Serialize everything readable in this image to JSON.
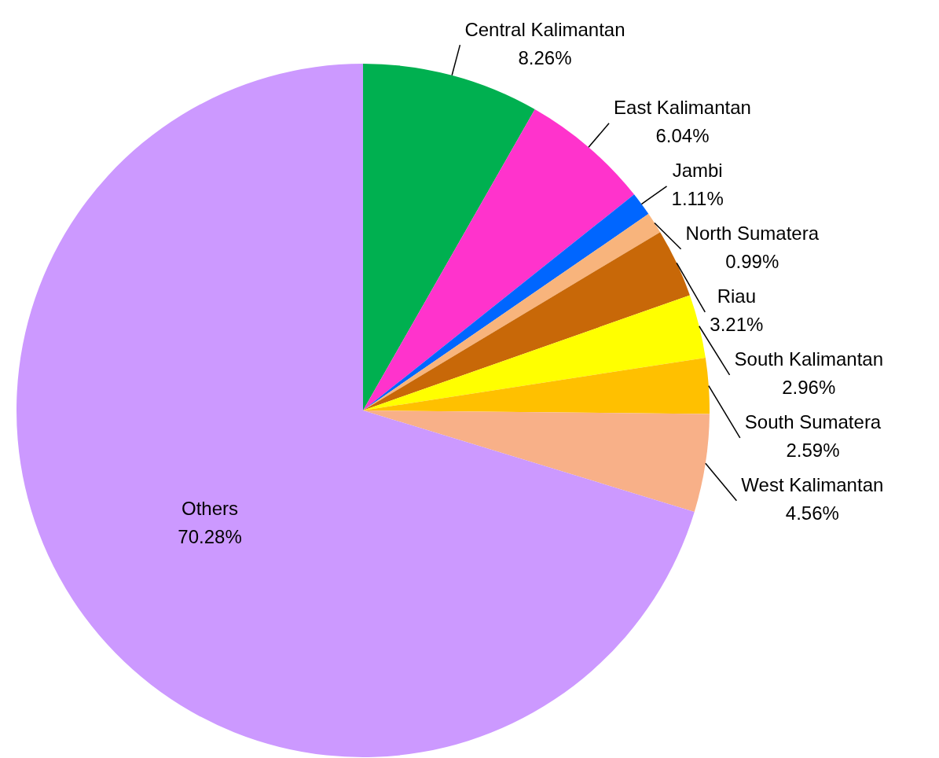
{
  "chart_data": {
    "type": "pie",
    "categories": [
      "Central Kalimantan",
      "East Kalimantan",
      "Jambi",
      "North Sumatera",
      "Riau",
      "South Kalimantan",
      "South Sumatera",
      "West Kalimantan",
      "Others"
    ],
    "values": [
      8.26,
      6.04,
      1.11,
      0.99,
      3.21,
      2.96,
      2.59,
      4.56,
      70.28
    ],
    "value_labels": [
      "8.26%",
      "6.04%",
      "1.11%",
      "0.99%",
      "3.21%",
      "2.96%",
      "2.59%",
      "4.56%",
      "70.28%"
    ],
    "colors": [
      "#00b050",
      "#ff33cc",
      "#0066ff",
      "#f8b47c",
      "#c86808",
      "#ffff00",
      "#ffc000",
      "#f8b088",
      "#cc99ff"
    ],
    "legend": false
  }
}
